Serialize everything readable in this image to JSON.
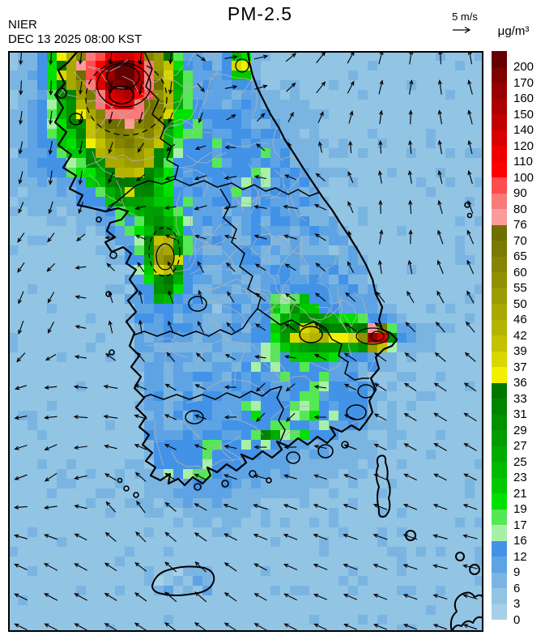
{
  "header": {
    "source": "NIER",
    "datetime": "DEC 13 2025 08:00 KST",
    "title": "PM-2.5",
    "wind_reference": "5 m/s",
    "unit": "μg/m³"
  },
  "colorbar": {
    "tick_labels": [
      "200",
      "170",
      "160",
      "150",
      "140",
      "120",
      "110",
      "100",
      "90",
      "80",
      "76",
      "70",
      "65",
      "60",
      "55",
      "50",
      "46",
      "42",
      "39",
      "37",
      "36",
      "33",
      "31",
      "29",
      "27",
      "25",
      "23",
      "21",
      "19",
      "17",
      "16",
      "12",
      "9",
      "6",
      "3",
      "0"
    ],
    "segment_colors_top_to_bottom": [
      "#650000",
      "#7F0000",
      "#960000",
      "#AC0000",
      "#C20000",
      "#D80000",
      "#EE0000",
      "#FF0000",
      "#FF4C4C",
      "#FA7A7A",
      "#FB9B9B",
      "#6F6F00",
      "#7A7A00",
      "#858500",
      "#909000",
      "#9C9C00",
      "#A8A800",
      "#B4B400",
      "#C2C200",
      "#D8D800",
      "#F0F000",
      "#007800",
      "#008500",
      "#009100",
      "#009E00",
      "#00AB00",
      "#00BA00",
      "#00C900",
      "#00E100",
      "#55E855",
      "#A8F0A8",
      "#4293E8",
      "#5EA4E4",
      "#7AB5E2",
      "#92C4E4",
      "#A6D0E8"
    ]
  },
  "map": {
    "sea_color": "#98C9E6",
    "coastline_color": "#000000",
    "province_border_color": "#000000",
    "county_border_color": "#b2b2b2",
    "wind_arrow_color": "#000000",
    "pollution_features": [
      {
        "location": "northwest hotspot extending past top edge",
        "levels_ugm3": "40-200+ core with pink/red cells, 17-76 surroundings"
      },
      {
        "location": "west-central coastal plume",
        "levels_ugm3": "17-50 with small yellow core"
      },
      {
        "location": "southeast coastal spot with westward green plume",
        "levels_ugm3": "17-160"
      },
      {
        "location": "north-northeast coastal spot",
        "levels_ugm3": "17-42"
      },
      {
        "location": "remainder of domain",
        "levels_ugm3": "0-16"
      }
    ]
  }
}
